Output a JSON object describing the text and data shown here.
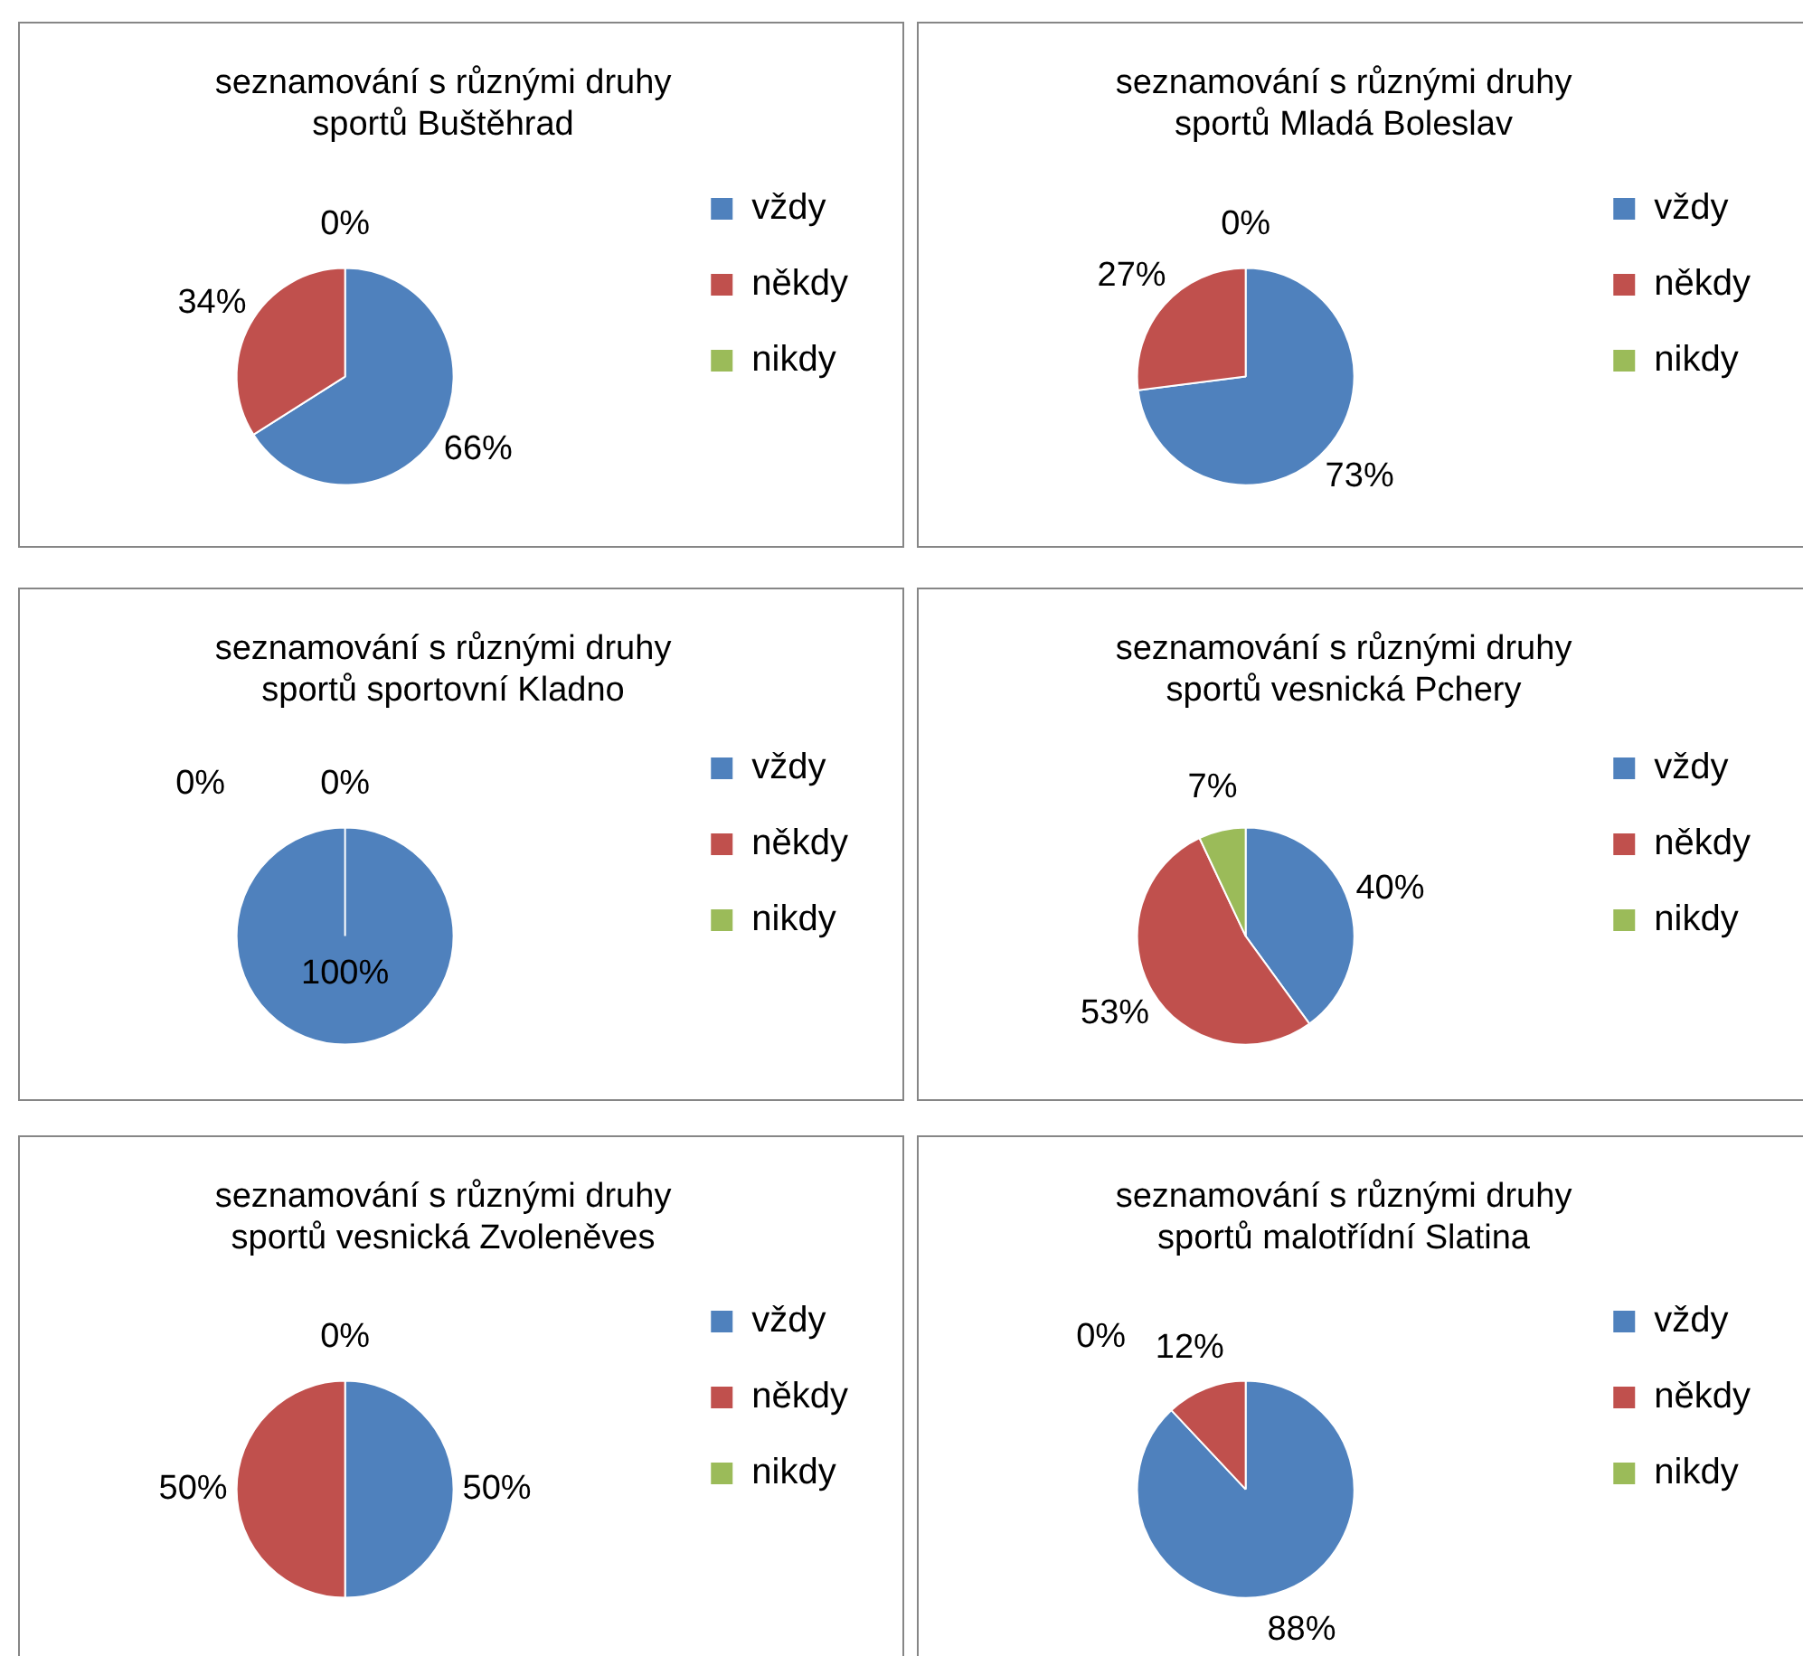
{
  "chart_data": [
    {
      "type": "pie",
      "title": "seznamování s různými druhy sportů Buštěhrad",
      "categories": [
        "vždy",
        "někdy",
        "nikdy"
      ],
      "values": [
        66,
        34,
        0
      ],
      "value_labels": [
        "66%",
        "34%",
        "0%"
      ],
      "colors": [
        "#4f81bd",
        "#c0504d",
        "#9bbb59"
      ],
      "legend": "right"
    },
    {
      "type": "pie",
      "title": "seznamování s různými druhy sportů Mladá Boleslav",
      "categories": [
        "vždy",
        "někdy",
        "nikdy"
      ],
      "values": [
        73,
        27,
        0
      ],
      "value_labels": [
        "73%",
        "27%",
        "0%"
      ],
      "colors": [
        "#4f81bd",
        "#c0504d",
        "#9bbb59"
      ],
      "legend": "right"
    },
    {
      "type": "pie",
      "title": "seznamování s různými druhy sportů sportovní Kladno",
      "categories": [
        "vždy",
        "někdy",
        "nikdy"
      ],
      "values": [
        100,
        0,
        0
      ],
      "value_labels": [
        "100%",
        "0%",
        "0%"
      ],
      "colors": [
        "#4f81bd",
        "#c0504d",
        "#9bbb59"
      ],
      "legend": "right"
    },
    {
      "type": "pie",
      "title": "seznamování s různými druhy sportů vesnická Pchery",
      "categories": [
        "vždy",
        "někdy",
        "nikdy"
      ],
      "values": [
        40,
        53,
        7
      ],
      "value_labels": [
        "40%",
        "53%",
        "7%"
      ],
      "colors": [
        "#4f81bd",
        "#c0504d",
        "#9bbb59"
      ],
      "legend": "right"
    },
    {
      "type": "pie",
      "title": "seznamování s různými druhy sportů vesnická Zvoleněves",
      "categories": [
        "vždy",
        "někdy",
        "nikdy"
      ],
      "values": [
        50,
        50,
        0
      ],
      "value_labels": [
        "50%",
        "50%",
        "0%"
      ],
      "colors": [
        "#4f81bd",
        "#c0504d",
        "#9bbb59"
      ],
      "legend": "right"
    },
    {
      "type": "pie",
      "title": "seznamování s různými druhy sportů malotřídní Slatina",
      "categories": [
        "vždy",
        "někdy",
        "nikdy"
      ],
      "values": [
        88,
        12,
        0
      ],
      "value_labels": [
        "88%",
        "12%",
        "0%"
      ],
      "colors": [
        "#4f81bd",
        "#c0504d",
        "#9bbb59"
      ],
      "legend": "right"
    }
  ]
}
